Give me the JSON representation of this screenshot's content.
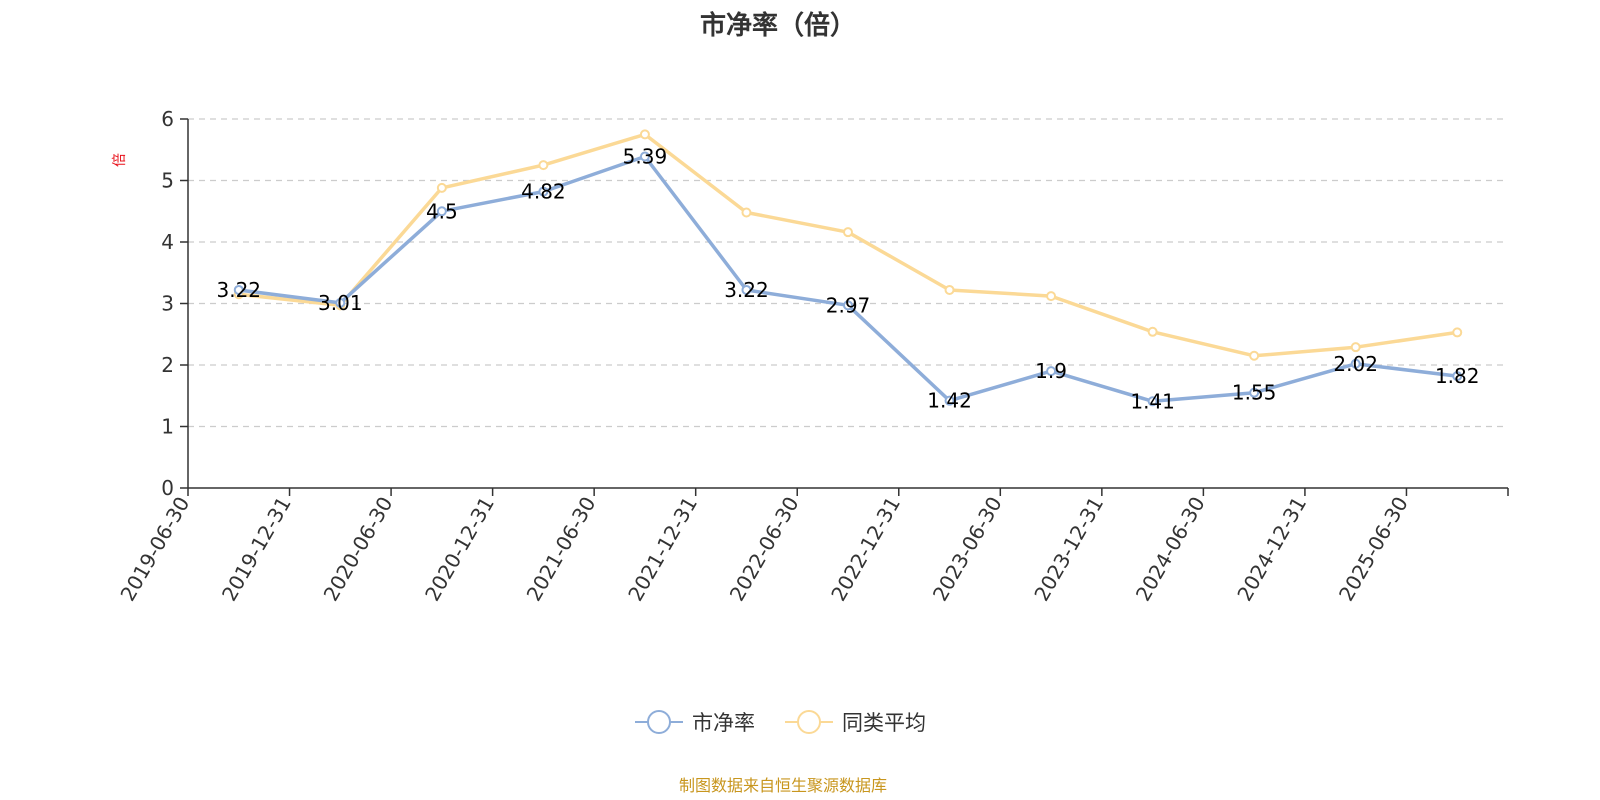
{
  "chart_data": {
    "type": "line",
    "title": "市净率（倍）",
    "ylabel": "倍",
    "ylim": [
      0,
      6
    ],
    "yticks": [
      0,
      1,
      2,
      3,
      4,
      5,
      6
    ],
    "grid": true,
    "legend_position": "bottom-center",
    "categories": [
      "2019-06-30",
      "2019-12-31",
      "2020-06-30",
      "2020-12-31",
      "2021-06-30",
      "2021-12-31",
      "2022-06-30",
      "2022-12-31",
      "2023-06-30",
      "2023-12-31",
      "2024-06-30",
      "2024-12-31",
      "2025-06-30"
    ],
    "series": [
      {
        "name": "市净率",
        "color": "#8eadd9",
        "values": [
          3.22,
          3.01,
          4.5,
          4.82,
          5.39,
          3.22,
          2.97,
          1.42,
          1.9,
          1.41,
          1.55,
          2.02,
          1.82
        ],
        "labels": [
          "3.22",
          "3.01",
          "4.5",
          "4.82",
          "5.39",
          "3.22",
          "2.97",
          "1.42",
          "1.9",
          "1.41",
          "1.55",
          "2.02",
          "1.82"
        ]
      },
      {
        "name": "同类平均",
        "color": "#fbd996",
        "values": [
          3.15,
          2.97,
          4.88,
          5.25,
          5.75,
          4.48,
          4.16,
          3.22,
          3.12,
          2.54,
          2.15,
          2.29,
          2.53
        ]
      }
    ],
    "source_note": "制图数据来自恒生聚源数据库",
    "colors": {
      "axis": "#333333",
      "grid": "#cccccc",
      "ylabel": "#e8101a",
      "source": "#c8961e"
    }
  }
}
